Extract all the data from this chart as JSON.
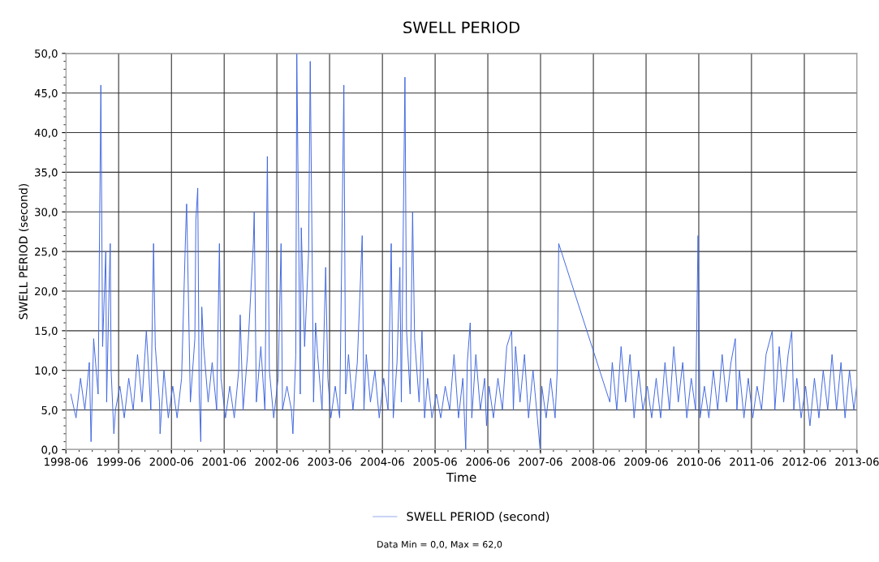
{
  "chart_data": {
    "type": "line",
    "title": "SWELL PERIOD",
    "xlabel": "Time",
    "ylabel": "SWELL PERIOD (second)",
    "annotations": [
      "Data Min = 0,0, Max = 62,0"
    ],
    "xlim": [
      "1998-06",
      "2013-06"
    ],
    "xticks": [
      "1998-06",
      "1999-06",
      "2000-06",
      "2001-06",
      "2002-06",
      "2003-06",
      "2004-06",
      "2005-06",
      "2006-06",
      "2007-06",
      "2008-06",
      "2009-06",
      "2010-06",
      "2011-06",
      "2012-06",
      "2013-06"
    ],
    "ylim": [
      0,
      50
    ],
    "yticks": [
      {
        "value": 0,
        "label": "0,0"
      },
      {
        "value": 5,
        "label": "5,0"
      },
      {
        "value": 10,
        "label": "10,0"
      },
      {
        "value": 15,
        "label": "15,0"
      },
      {
        "value": 20,
        "label": "20,0"
      },
      {
        "value": 25,
        "label": "25,0"
      },
      {
        "value": 30,
        "label": "30,0"
      },
      {
        "value": 35,
        "label": "35,0"
      },
      {
        "value": 40,
        "label": "40,0"
      },
      {
        "value": 45,
        "label": "45,0"
      },
      {
        "value": 50,
        "label": "50,0"
      }
    ],
    "grid": true,
    "legend": "bottom",
    "marker": "none",
    "line_style": "solid",
    "series": [
      {
        "name": "SWELL PERIOD (second)",
        "color": "#3f66e0",
        "x": [
          "1998-07-05",
          "1998-08-10",
          "1998-09-10",
          "1998-10-10",
          "1998-11-10",
          "1998-11-22",
          "1998-12-10",
          "1999-01-10",
          "1999-01-29",
          "1999-02-10",
          "1999-03-04",
          "1999-03-10",
          "1999-03-29",
          "1999-04-04",
          "1999-04-10",
          "1999-04-29",
          "1999-05-10",
          "1999-06-10",
          "1999-07-10",
          "1999-08-10",
          "1999-09-10",
          "1999-10-10",
          "1999-11-10",
          "1999-12-10",
          "2000-01-10",
          "2000-01-29",
          "2000-02-10",
          "2000-03-10",
          "2000-03-14",
          "2000-04-10",
          "2000-05-10",
          "2000-06-10",
          "2000-07-10",
          "2000-08-10",
          "2000-09-08",
          "2000-09-14",
          "2000-10-10",
          "2000-11-10",
          "2000-11-17",
          "2000-11-30",
          "2000-12-10",
          "2000-12-21",
          "2000-12-28",
          "2001-01-10",
          "2001-02-10",
          "2001-03-10",
          "2001-04-10",
          "2001-04-29",
          "2001-05-10",
          "2001-06-10",
          "2001-07-10",
          "2001-08-10",
          "2001-09-10",
          "2001-09-20",
          "2001-10-10",
          "2001-11-10",
          "2001-12-20",
          "2001-12-26",
          "2002-01-10",
          "2002-02-10",
          "2002-03-10",
          "2002-03-27",
          "2002-04-10",
          "2002-05-10",
          "2002-06-10",
          "2002-06-30",
          "2002-07-10",
          "2002-08-10",
          "2002-09-10",
          "2002-09-20",
          "2002-10-10",
          "2002-10-17",
          "2002-11-10",
          "2002-11-17",
          "2002-12-10",
          "2003-01-07",
          "2003-01-18",
          "2003-02-10",
          "2003-02-24",
          "2003-03-10",
          "2003-04-10",
          "2003-05-05",
          "2003-05-20",
          "2003-06-10",
          "2003-07-10",
          "2003-08-10",
          "2003-09-08",
          "2003-09-20",
          "2003-10-10",
          "2003-11-10",
          "2003-12-10",
          "2004-01-13",
          "2004-01-25",
          "2004-02-10",
          "2004-03-10",
          "2004-04-10",
          "2004-05-10",
          "2004-06-10",
          "2004-07-10",
          "2004-08-01",
          "2004-08-15",
          "2004-09-10",
          "2004-09-30",
          "2004-10-10",
          "2004-11-04",
          "2004-11-15",
          "2004-12-10",
          "2004-12-27",
          "2005-01-10",
          "2005-02-10",
          "2005-03-02",
          "2005-03-20",
          "2005-04-10",
          "2005-05-10",
          "2005-06-10",
          "2005-07-10",
          "2005-08-10",
          "2005-09-10",
          "2005-10-10",
          "2005-11-10",
          "2005-12-10",
          "2005-12-30",
          "2006-01-10",
          "2006-01-30",
          "2006-02-10",
          "2006-03-10",
          "2006-04-10",
          "2006-05-10",
          "2006-05-23",
          "2006-06-10",
          "2006-07-10",
          "2006-08-10",
          "2006-09-10",
          "2006-10-10",
          "2006-11-13",
          "2006-11-25",
          "2006-12-10",
          "2007-01-10",
          "2007-02-10",
          "2007-03-10",
          "2007-04-10",
          "2007-05-10",
          "2007-05-29",
          "2007-06-10",
          "2007-07-10",
          "2007-08-10",
          "2007-09-10",
          "2007-09-25",
          "2007-10-05",
          "2008-09-23",
          "2008-10-10",
          "2008-11-10",
          "2008-12-10",
          "2009-01-10",
          "2009-02-10",
          "2009-03-10",
          "2009-04-10",
          "2009-05-10",
          "2009-06-10",
          "2009-07-10",
          "2009-08-10",
          "2009-09-10",
          "2009-10-10",
          "2009-11-10",
          "2009-12-10",
          "2010-01-10",
          "2010-02-10",
          "2010-03-10",
          "2010-04-10",
          "2010-05-10",
          "2010-05-27",
          "2010-06-10",
          "2010-07-10",
          "2010-08-10",
          "2010-09-10",
          "2010-10-10",
          "2010-11-10",
          "2010-12-10",
          "2011-01-10",
          "2011-02-09",
          "2011-02-20",
          "2011-03-10",
          "2011-04-10",
          "2011-05-10",
          "2011-06-10",
          "2011-07-10",
          "2011-08-10",
          "2011-09-10",
          "2011-10-23",
          "2011-11-10",
          "2011-12-10",
          "2012-01-10",
          "2012-02-10",
          "2012-03-06",
          "2012-03-20",
          "2012-04-10",
          "2012-05-10",
          "2012-06-10",
          "2012-07-10",
          "2012-08-10",
          "2012-09-10",
          "2012-10-10",
          "2012-11-10",
          "2012-12-10",
          "2013-01-10",
          "2013-02-10",
          "2013-03-10",
          "2013-04-10",
          "2013-05-10",
          "2013-05-30"
        ],
        "values": [
          7,
          4,
          9,
          5,
          11,
          1,
          14,
          7,
          46,
          13,
          25,
          6,
          22,
          26,
          10,
          2,
          5,
          8,
          4,
          9,
          5,
          12,
          6,
          15,
          5,
          26,
          13,
          6,
          2,
          10,
          4,
          8,
          4,
          9,
          28,
          31,
          6,
          14,
          29,
          33,
          7,
          1,
          18,
          13,
          6,
          11,
          5,
          26,
          9,
          4,
          8,
          4,
          10,
          17,
          5,
          12,
          26,
          30,
          6,
          13,
          5,
          37,
          10,
          4,
          9,
          26,
          5,
          8,
          5,
          2,
          12,
          50,
          7,
          28,
          13,
          25,
          49,
          6,
          16,
          12,
          5,
          23,
          9,
          4,
          8,
          4,
          46,
          7,
          12,
          5,
          11,
          27,
          5,
          12,
          6,
          10,
          4,
          9,
          5,
          26,
          4,
          11,
          23,
          6,
          47,
          15,
          7,
          30,
          14,
          6,
          15,
          4,
          9,
          4,
          7,
          4,
          8,
          5,
          12,
          4,
          9,
          0,
          11,
          16,
          4,
          12,
          5,
          9,
          3,
          8,
          4,
          9,
          5,
          13,
          15,
          5,
          13,
          6,
          12,
          4,
          10,
          4,
          0,
          8,
          4,
          9,
          4,
          10,
          26,
          6,
          11,
          5,
          13,
          6,
          12,
          4,
          10,
          5,
          8,
          4,
          9,
          4,
          11,
          5,
          13,
          6,
          11,
          4,
          9,
          5,
          27,
          4,
          8,
          4,
          10,
          5,
          12,
          6,
          11,
          14,
          5,
          10,
          4,
          9,
          4,
          8,
          5,
          12,
          15,
          5,
          13,
          6,
          12,
          15,
          5,
          9,
          4,
          8,
          3,
          9,
          4,
          10,
          5,
          12,
          5,
          11,
          4,
          10,
          5,
          8
        ]
      }
    ]
  }
}
